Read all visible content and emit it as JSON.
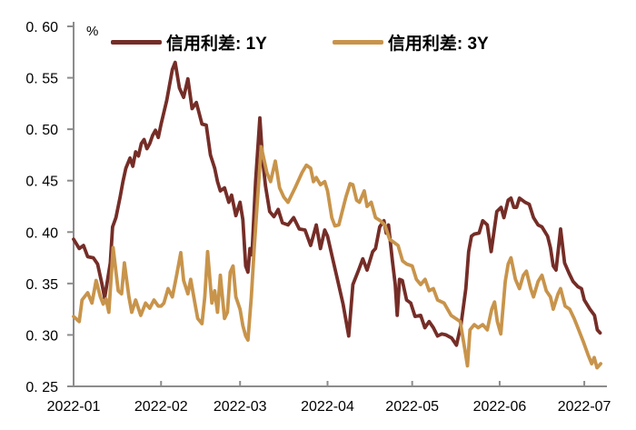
{
  "chart_data": {
    "type": "line",
    "title": "",
    "unit_label": "%",
    "grid": false,
    "legend_position": "top-center",
    "axis_color": "#8c8c8c",
    "text_color": "#000000",
    "background_color": "#ffffff",
    "y_axis": {
      "min": 0.25,
      "max": 0.6,
      "tick_step": 0.05,
      "tick_values": [
        0.6,
        0.55,
        0.5,
        0.45,
        0.4,
        0.35,
        0.3,
        0.25
      ],
      "tick_labels": [
        "0. 60",
        "0. 55",
        "0. 50",
        "0. 45",
        "0. 40",
        "0. 35",
        "0. 30",
        "0. 25"
      ]
    },
    "x_axis": {
      "start_date": "2022-01-01",
      "tick_labels": [
        "2022-01",
        "2022-02",
        "2022-03",
        "2022-04",
        "2022-05",
        "2022-06",
        "2022-07"
      ],
      "tick_days": [
        0,
        31,
        59,
        90,
        120,
        151,
        181
      ],
      "day_span": 189
    },
    "series": [
      {
        "name": "信用利差: 1Y",
        "color": "#752d27",
        "points": [
          [
            0,
            0.393
          ],
          [
            2,
            0.384
          ],
          [
            3.5,
            0.387
          ],
          [
            5,
            0.376
          ],
          [
            7,
            0.375
          ],
          [
            8.5,
            0.369
          ],
          [
            10,
            0.35
          ],
          [
            11,
            0.336
          ],
          [
            13,
            0.37
          ],
          [
            13.8,
            0.405
          ],
          [
            15,
            0.414
          ],
          [
            16.5,
            0.434
          ],
          [
            17.5,
            0.449
          ],
          [
            18.5,
            0.462
          ],
          [
            20,
            0.472
          ],
          [
            21,
            0.464
          ],
          [
            22,
            0.478
          ],
          [
            23,
            0.474
          ],
          [
            24,
            0.486
          ],
          [
            25,
            0.49
          ],
          [
            26,
            0.481
          ],
          [
            27,
            0.486
          ],
          [
            28,
            0.494
          ],
          [
            29,
            0.499
          ],
          [
            30,
            0.492
          ],
          [
            31,
            0.505
          ],
          [
            33,
            0.528
          ],
          [
            35,
            0.558
          ],
          [
            36,
            0.565
          ],
          [
            37.5,
            0.54
          ],
          [
            39,
            0.531
          ],
          [
            40.5,
            0.549
          ],
          [
            42,
            0.52
          ],
          [
            43.5,
            0.526
          ],
          [
            45.5,
            0.505
          ],
          [
            47,
            0.504
          ],
          [
            48.5,
            0.475
          ],
          [
            50,
            0.462
          ],
          [
            51,
            0.449
          ],
          [
            52,
            0.44
          ],
          [
            53.5,
            0.443
          ],
          [
            55,
            0.429
          ],
          [
            56,
            0.436
          ],
          [
            57.5,
            0.416
          ],
          [
            59,
            0.429
          ],
          [
            60,
            0.412
          ],
          [
            61,
            0.367
          ],
          [
            61.8,
            0.361
          ],
          [
            62.5,
            0.384
          ],
          [
            63.2,
            0.378
          ],
          [
            64.5,
            0.449
          ],
          [
            66,
            0.511
          ],
          [
            67,
            0.47
          ],
          [
            68,
            0.445
          ],
          [
            69.5,
            0.42
          ],
          [
            71,
            0.415
          ],
          [
            72.5,
            0.422
          ],
          [
            74,
            0.409
          ],
          [
            76,
            0.407
          ],
          [
            78,
            0.414
          ],
          [
            80,
            0.403
          ],
          [
            82,
            0.402
          ],
          [
            84,
            0.387
          ],
          [
            86,
            0.407
          ],
          [
            87.5,
            0.384
          ],
          [
            89,
            0.402
          ],
          [
            90,
            0.396
          ],
          [
            92,
            0.372
          ],
          [
            93.5,
            0.354
          ],
          [
            95.5,
            0.33
          ],
          [
            97.5,
            0.299
          ],
          [
            99,
            0.349
          ],
          [
            101,
            0.363
          ],
          [
            102.5,
            0.374
          ],
          [
            104,
            0.363
          ],
          [
            106,
            0.381
          ],
          [
            107,
            0.384
          ],
          [
            108.5,
            0.405
          ],
          [
            110,
            0.411
          ],
          [
            110.8,
            0.399
          ],
          [
            111.6,
            0.407
          ],
          [
            113,
            0.372
          ],
          [
            114,
            0.349
          ],
          [
            114.7,
            0.319
          ],
          [
            115.5,
            0.354
          ],
          [
            116.5,
            0.353
          ],
          [
            118,
            0.334
          ],
          [
            119.5,
            0.331
          ],
          [
            121,
            0.318
          ],
          [
            123,
            0.319
          ],
          [
            124.5,
            0.307
          ],
          [
            126,
            0.313
          ],
          [
            127.5,
            0.307
          ],
          [
            129,
            0.299
          ],
          [
            130.5,
            0.301
          ],
          [
            132,
            0.3
          ],
          [
            134,
            0.297
          ],
          [
            135.7,
            0.29
          ],
          [
            137.3,
            0.31
          ],
          [
            139,
            0.345
          ],
          [
            140,
            0.381
          ],
          [
            141,
            0.396
          ],
          [
            142,
            0.398
          ],
          [
            143.7,
            0.399
          ],
          [
            145,
            0.411
          ],
          [
            146.6,
            0.407
          ],
          [
            148,
            0.381
          ],
          [
            150,
            0.42
          ],
          [
            151.5,
            0.424
          ],
          [
            152.5,
            0.414
          ],
          [
            154,
            0.431
          ],
          [
            155,
            0.433
          ],
          [
            156,
            0.424
          ],
          [
            157,
            0.424
          ],
          [
            158,
            0.433
          ],
          [
            160,
            0.429
          ],
          [
            161.5,
            0.427
          ],
          [
            163,
            0.414
          ],
          [
            164.6,
            0.407
          ],
          [
            166,
            0.405
          ],
          [
            168,
            0.396
          ],
          [
            169,
            0.385
          ],
          [
            170,
            0.367
          ],
          [
            171,
            0.363
          ],
          [
            172.6,
            0.403
          ],
          [
            174,
            0.37
          ],
          [
            175.6,
            0.36
          ],
          [
            177,
            0.352
          ],
          [
            178.7,
            0.347
          ],
          [
            180,
            0.345
          ],
          [
            181,
            0.334
          ],
          [
            183,
            0.325
          ],
          [
            184.6,
            0.319
          ],
          [
            185.6,
            0.305
          ],
          [
            186.6,
            0.302
          ]
        ]
      },
      {
        "name": "信用利差: 3Y",
        "color": "#c8944b",
        "points": [
          [
            0,
            0.318
          ],
          [
            2,
            0.313
          ],
          [
            3,
            0.334
          ],
          [
            5,
            0.341
          ],
          [
            6.5,
            0.331
          ],
          [
            8,
            0.353
          ],
          [
            9.5,
            0.337
          ],
          [
            10.5,
            0.33
          ],
          [
            11.5,
            0.335
          ],
          [
            12.5,
            0.322
          ],
          [
            14,
            0.385
          ],
          [
            15.8,
            0.343
          ],
          [
            17,
            0.34
          ],
          [
            18,
            0.37
          ],
          [
            19.6,
            0.337
          ],
          [
            20.6,
            0.322
          ],
          [
            22,
            0.334
          ],
          [
            23.8,
            0.319
          ],
          [
            25.5,
            0.331
          ],
          [
            27,
            0.326
          ],
          [
            28.5,
            0.334
          ],
          [
            30,
            0.328
          ],
          [
            31,
            0.328
          ],
          [
            32,
            0.331
          ],
          [
            33.5,
            0.345
          ],
          [
            35,
            0.337
          ],
          [
            36.5,
            0.358
          ],
          [
            38,
            0.38
          ],
          [
            39,
            0.353
          ],
          [
            40.5,
            0.34
          ],
          [
            41.5,
            0.354
          ],
          [
            43,
            0.331
          ],
          [
            44,
            0.316
          ],
          [
            45.5,
            0.311
          ],
          [
            46.5,
            0.337
          ],
          [
            47.5,
            0.381
          ],
          [
            49,
            0.331
          ],
          [
            50,
            0.343
          ],
          [
            51,
            0.322
          ],
          [
            52,
            0.358
          ],
          [
            53.5,
            0.316
          ],
          [
            54.5,
            0.322
          ],
          [
            55.5,
            0.361
          ],
          [
            56.5,
            0.367
          ],
          [
            57.5,
            0.337
          ],
          [
            59,
            0.325
          ],
          [
            60,
            0.309
          ],
          [
            61,
            0.299
          ],
          [
            61.8,
            0.295
          ],
          [
            63,
            0.337
          ],
          [
            64,
            0.384
          ],
          [
            65,
            0.425
          ],
          [
            66.5,
            0.483
          ],
          [
            68.5,
            0.458
          ],
          [
            69.8,
            0.449
          ],
          [
            71.5,
            0.469
          ],
          [
            73,
            0.443
          ],
          [
            74.5,
            0.434
          ],
          [
            76,
            0.429
          ],
          [
            78.5,
            0.443
          ],
          [
            81,
            0.458
          ],
          [
            82.5,
            0.465
          ],
          [
            84,
            0.462
          ],
          [
            85,
            0.449
          ],
          [
            86,
            0.453
          ],
          [
            87.5,
            0.446
          ],
          [
            89,
            0.449
          ],
          [
            90,
            0.44
          ],
          [
            91.5,
            0.414
          ],
          [
            92.6,
            0.406
          ],
          [
            94,
            0.407
          ],
          [
            96.5,
            0.434
          ],
          [
            98,
            0.447
          ],
          [
            99,
            0.446
          ],
          [
            100.3,
            0.431
          ],
          [
            101.3,
            0.429
          ],
          [
            103,
            0.44
          ],
          [
            104,
            0.425
          ],
          [
            105.5,
            0.429
          ],
          [
            107,
            0.414
          ],
          [
            108.7,
            0.411
          ],
          [
            110.3,
            0.407
          ],
          [
            112,
            0.393
          ],
          [
            113.5,
            0.39
          ],
          [
            115,
            0.387
          ],
          [
            116.6,
            0.372
          ],
          [
            118,
            0.369
          ],
          [
            120,
            0.367
          ],
          [
            121.5,
            0.354
          ],
          [
            123,
            0.349
          ],
          [
            124.6,
            0.354
          ],
          [
            126,
            0.343
          ],
          [
            127.5,
            0.345
          ],
          [
            129,
            0.334
          ],
          [
            131.3,
            0.331
          ],
          [
            133.8,
            0.319
          ],
          [
            135.4,
            0.316
          ],
          [
            137,
            0.313
          ],
          [
            138.6,
            0.287
          ],
          [
            139.6,
            0.27
          ],
          [
            140.5,
            0.305
          ],
          [
            142,
            0.31
          ],
          [
            143.4,
            0.307
          ],
          [
            145,
            0.31
          ],
          [
            146.6,
            0.305
          ],
          [
            148.2,
            0.325
          ],
          [
            149.2,
            0.332
          ],
          [
            150.2,
            0.313
          ],
          [
            151.4,
            0.301
          ],
          [
            153,
            0.352
          ],
          [
            154,
            0.369
          ],
          [
            155,
            0.375
          ],
          [
            156.6,
            0.354
          ],
          [
            158,
            0.345
          ],
          [
            159.4,
            0.358
          ],
          [
            160.5,
            0.362
          ],
          [
            162,
            0.345
          ],
          [
            163,
            0.337
          ],
          [
            164.6,
            0.352
          ],
          [
            166,
            0.358
          ],
          [
            167.5,
            0.343
          ],
          [
            169,
            0.337
          ],
          [
            170,
            0.325
          ],
          [
            171.7,
            0.34
          ],
          [
            172.6,
            0.345
          ],
          [
            174.2,
            0.328
          ],
          [
            175.8,
            0.325
          ],
          [
            177.4,
            0.316
          ],
          [
            179,
            0.305
          ],
          [
            180.7,
            0.293
          ],
          [
            182.3,
            0.281
          ],
          [
            183.6,
            0.272
          ],
          [
            184.5,
            0.278
          ],
          [
            185.5,
            0.268
          ],
          [
            186.8,
            0.272
          ]
        ]
      }
    ]
  }
}
